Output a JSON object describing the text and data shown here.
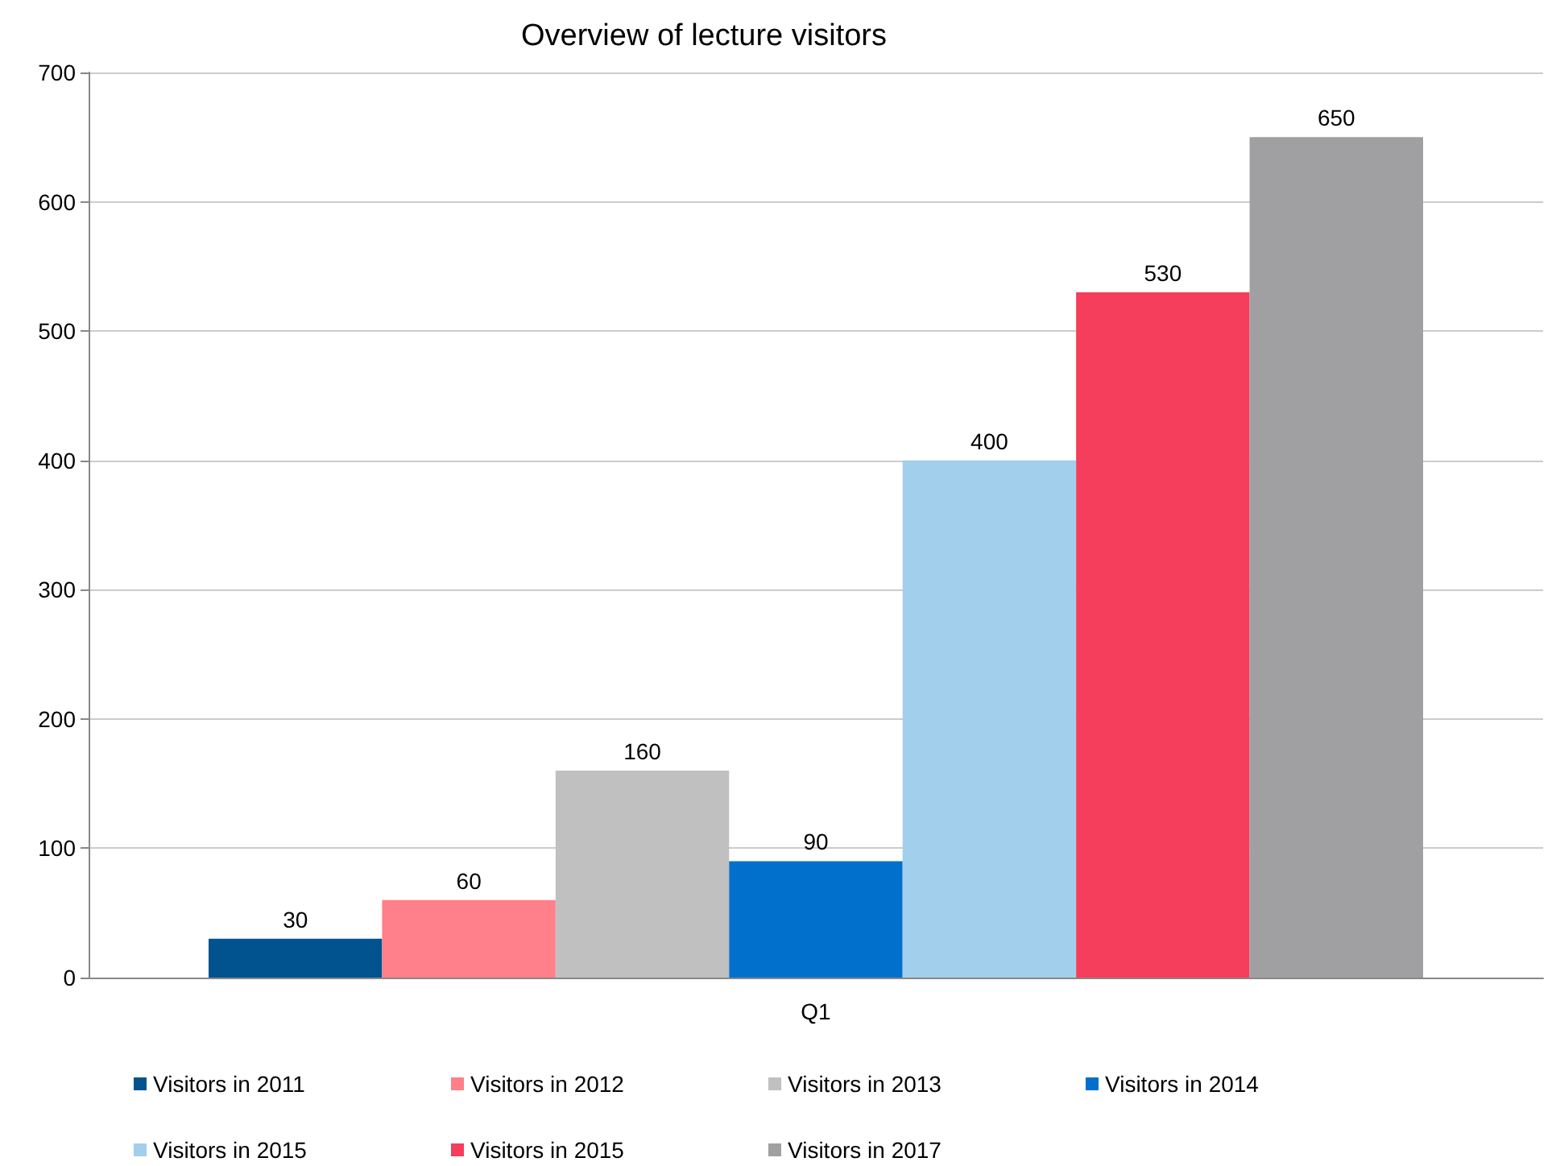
{
  "chart_data": {
    "type": "bar",
    "title": "Overview of lecture visitors",
    "categories": [
      "Q1"
    ],
    "series": [
      {
        "name": "Visitors in 2011",
        "color": "#00538f",
        "values": [
          30
        ]
      },
      {
        "name": "Visitors in 2012",
        "color": "#ff7f8a",
        "values": [
          60
        ]
      },
      {
        "name": "Visitors in 2013",
        "color": "#c0c0c0",
        "values": [
          160
        ]
      },
      {
        "name": "Visitors in 2014",
        "color": "#0070cc",
        "values": [
          90
        ]
      },
      {
        "name": "Visitors in 2015",
        "color": "#a2cfec",
        "values": [
          400
        ]
      },
      {
        "name": "Visitors in 2015",
        "color": "#f53d5c",
        "values": [
          530
        ]
      },
      {
        "name": "Visitors in 2017",
        "color": "#a0a0a2",
        "values": [
          650
        ]
      }
    ],
    "ylim": [
      0,
      700
    ],
    "yticks": [
      0,
      100,
      200,
      300,
      400,
      500,
      600,
      700
    ],
    "grid": "y",
    "legend": "bottom",
    "data_labels": true
  }
}
